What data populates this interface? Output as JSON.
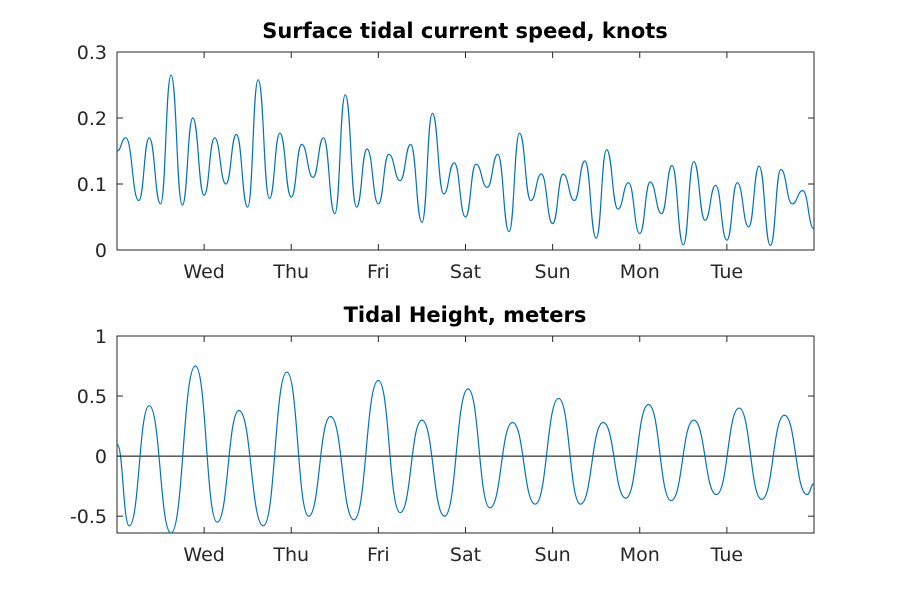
{
  "chart_data": [
    {
      "type": "line",
      "title": "Surface tidal current speed, knots",
      "xlabel": "",
      "ylabel": "",
      "ylim": [
        0,
        0.3
      ],
      "yticks": [
        "0",
        "0.1",
        "0.2",
        "0.3"
      ],
      "xlim_days": [
        0,
        8
      ],
      "xtick_labels": [
        "Wed",
        "Thu",
        "Fri",
        "Sat",
        "Sun",
        "Mon",
        "Tue"
      ],
      "xtick_positions_days": [
        1,
        2,
        3,
        4,
        5,
        6,
        7
      ],
      "grid": false,
      "series": [
        {
          "color": "#0072bd",
          "x_days": [
            0.0,
            0.1,
            0.25,
            0.37,
            0.5,
            0.62,
            0.75,
            0.87,
            1.0,
            1.12,
            1.25,
            1.37,
            1.5,
            1.62,
            1.75,
            1.87,
            2.0,
            2.12,
            2.25,
            2.37,
            2.5,
            2.62,
            2.75,
            2.87,
            3.0,
            3.12,
            3.25,
            3.37,
            3.5,
            3.62,
            3.75,
            3.87,
            4.0,
            4.12,
            4.25,
            4.37,
            4.5,
            4.62,
            4.75,
            4.87,
            5.0,
            5.12,
            5.25,
            5.37,
            5.5,
            5.62,
            5.75,
            5.87,
            6.0,
            6.12,
            6.25,
            6.37,
            6.5,
            6.62,
            6.75,
            6.87,
            7.0,
            7.12,
            7.25,
            7.37,
            7.5,
            7.62,
            7.75,
            7.87,
            8.0
          ],
          "values": [
            0.15,
            0.17,
            0.075,
            0.17,
            0.07,
            0.265,
            0.068,
            0.2,
            0.083,
            0.17,
            0.1,
            0.175,
            0.065,
            0.258,
            0.078,
            0.177,
            0.08,
            0.16,
            0.11,
            0.17,
            0.055,
            0.235,
            0.065,
            0.153,
            0.07,
            0.145,
            0.105,
            0.16,
            0.042,
            0.207,
            0.085,
            0.132,
            0.05,
            0.13,
            0.095,
            0.145,
            0.028,
            0.177,
            0.075,
            0.115,
            0.04,
            0.115,
            0.075,
            0.135,
            0.018,
            0.152,
            0.062,
            0.102,
            0.025,
            0.103,
            0.055,
            0.128,
            0.008,
            0.134,
            0.045,
            0.098,
            0.015,
            0.102,
            0.035,
            0.127,
            0.007,
            0.122,
            0.07,
            0.09,
            0.032
          ]
        }
      ]
    },
    {
      "type": "line",
      "title": "Tidal Height, meters",
      "xlabel": "",
      "ylabel": "",
      "ylim": [
        -0.64,
        1
      ],
      "yticks": [
        "-0.5",
        "0",
        "0.5",
        "1"
      ],
      "xlim_days": [
        0,
        8
      ],
      "xtick_labels": [
        "Wed",
        "Thu",
        "Fri",
        "Sat",
        "Sun",
        "Mon",
        "Tue"
      ],
      "xtick_positions_days": [
        1,
        2,
        3,
        4,
        5,
        6,
        7
      ],
      "grid": false,
      "zero_line": true,
      "series": [
        {
          "color": "#0072bd",
          "x_days": [
            0.0,
            0.14,
            0.37,
            0.62,
            0.9,
            1.15,
            1.4,
            1.68,
            1.95,
            2.2,
            2.45,
            2.72,
            3.0,
            3.25,
            3.5,
            3.76,
            4.03,
            4.28,
            4.54,
            4.8,
            5.07,
            5.32,
            5.58,
            5.84,
            6.1,
            6.36,
            6.62,
            6.88,
            7.14,
            7.4,
            7.66,
            7.92,
            8.0
          ],
          "values": [
            0.1,
            -0.58,
            0.42,
            -0.64,
            0.75,
            -0.55,
            0.38,
            -0.58,
            0.7,
            -0.5,
            0.33,
            -0.53,
            0.63,
            -0.47,
            0.3,
            -0.5,
            0.56,
            -0.43,
            0.28,
            -0.4,
            0.48,
            -0.4,
            0.28,
            -0.35,
            0.43,
            -0.37,
            0.3,
            -0.32,
            0.4,
            -0.36,
            0.34,
            -0.32,
            -0.23
          ]
        }
      ]
    }
  ]
}
